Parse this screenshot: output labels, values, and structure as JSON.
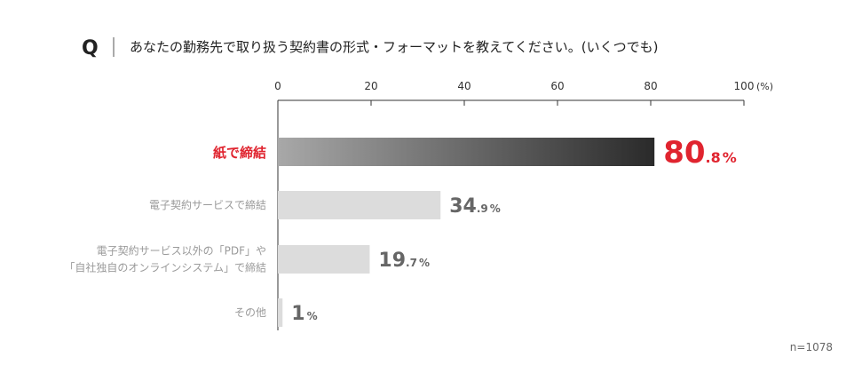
{
  "question": {
    "mark": "Q",
    "text": "あなたの勤務先で取り扱う契約書の形式・フォーマットを教えてください。(いくつでも)"
  },
  "chart_data": {
    "type": "bar",
    "orientation": "horizontal",
    "xlim": [
      0,
      100
    ],
    "xticks": [
      "0",
      "20",
      "40",
      "60",
      "80",
      "100"
    ],
    "unit_label": "(%)",
    "categories": [
      [
        "紙で締結"
      ],
      [
        "電子契約サービスで締結"
      ],
      [
        "電子契約サービス以外の「PDF」や",
        "「自社独自のオンラインシステム」で締結"
      ],
      [
        "その他"
      ]
    ],
    "values": [
      80.8,
      34.9,
      19.7,
      1
    ],
    "value_labels": [
      {
        "int": "80",
        "dec": ".8",
        "pct": "%"
      },
      {
        "int": "34",
        "dec": ".9",
        "pct": "%"
      },
      {
        "int": "19",
        "dec": ".7",
        "pct": "%"
      },
      {
        "int": "1",
        "dec": "",
        "pct": "%"
      }
    ],
    "highlight_index": 0,
    "colors": {
      "highlight_start": "#a8a8a8",
      "highlight_end": "#2a2a2a",
      "bar": "#dcdcdc",
      "accent": "#e0242f",
      "axis": "#333333"
    },
    "grid": false
  },
  "sample_note": "n=1078"
}
